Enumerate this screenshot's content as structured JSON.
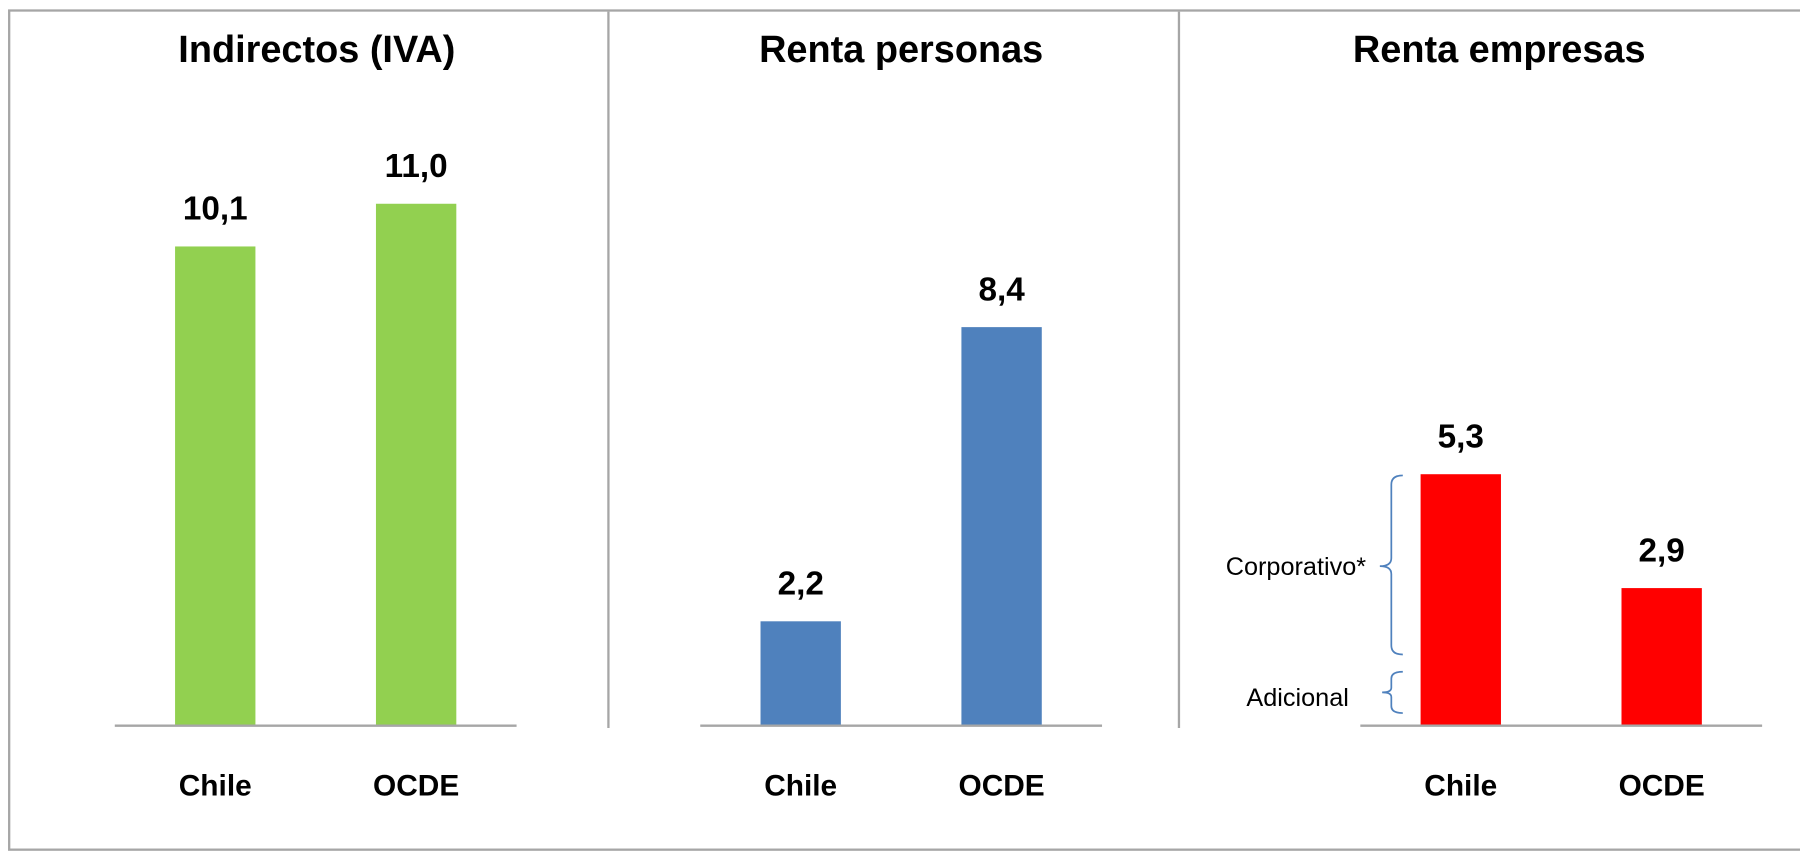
{
  "chart_data": [
    {
      "type": "bar",
      "title": "Indirectos (IVA)",
      "categories": [
        "Chile",
        "OCDE"
      ],
      "values": [
        10.1,
        11.0
      ],
      "value_labels": [
        "10,1",
        "11,0"
      ],
      "color": "#92d050",
      "ylim": [
        0,
        12
      ]
    },
    {
      "type": "bar",
      "title": "Renta personas",
      "categories": [
        "Chile",
        "OCDE"
      ],
      "values": [
        2.2,
        8.4
      ],
      "value_labels": [
        "2,2",
        "8,4"
      ],
      "color": "#4f81bd",
      "ylim": [
        0,
        12
      ]
    },
    {
      "type": "bar",
      "title": "Renta empresas",
      "categories": [
        "Chile",
        "OCDE"
      ],
      "values": [
        5.3,
        2.9
      ],
      "value_labels": [
        "5,3",
        "2,9"
      ],
      "color": "#ff0000",
      "ylim": [
        0,
        12
      ],
      "annotations": [
        "Corporativo*",
        "Adicional"
      ]
    }
  ]
}
